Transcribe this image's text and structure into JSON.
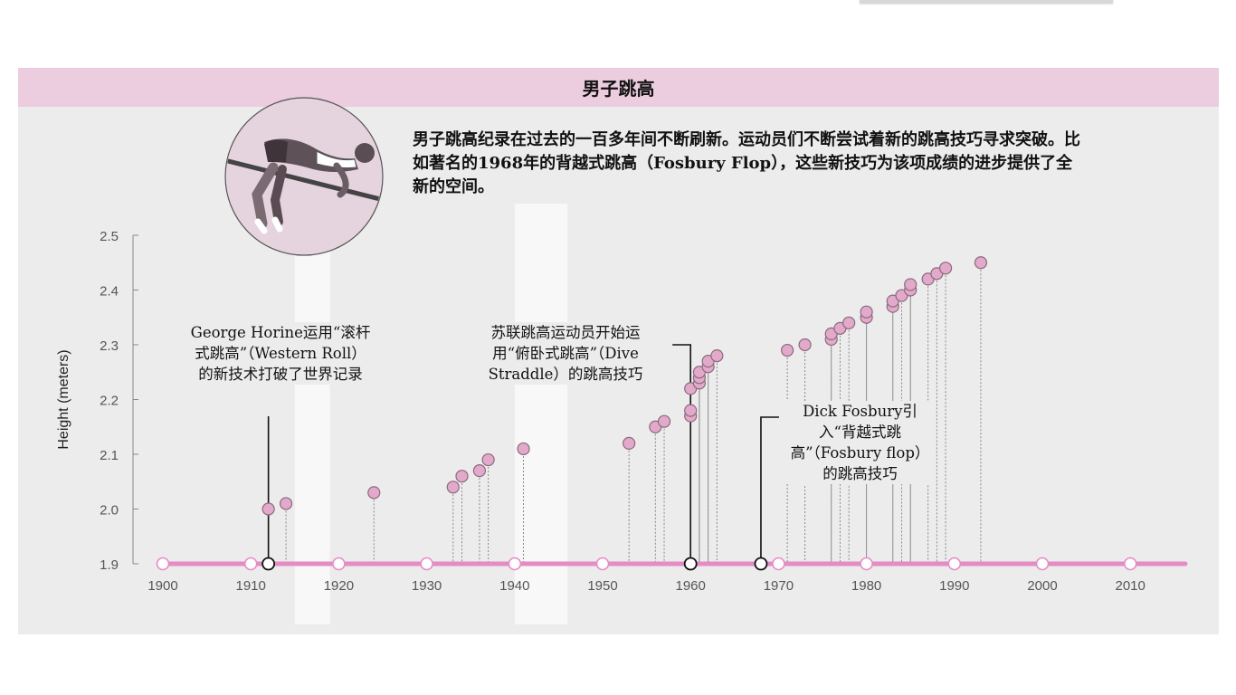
{
  "title": "男子跳高",
  "intro": "男子跳高纪录在过去的一百多年间不断刷新。运动员们不断尝试着新的跳高技巧寻求突破。比如著名的1968年的背越式跳高（Fosbury Flop），这些新技巧为该项成绩的进步提供了全新的空间。",
  "annotations": {
    "horine": "George Horine运用“滚杆式跳高”（Western Roll）的新技术打破了世界记录",
    "soviet": "苏联跳高运动员开始运用“俯卧式跳高”（Dive Straddle）的跳高技巧",
    "fosbury": "Dick Fosbury引入“背越式跳高”（Fosbury flop）的跳高技巧"
  },
  "colors": {
    "title_band": "#ecccdf",
    "panel": "#ececec",
    "timeline": "#e58cc4",
    "point_fill": "#e3a9ca",
    "point_stroke": "#8a6a7c"
  },
  "icons": [
    "high-jumper-illustration"
  ],
  "chart_data": {
    "type": "scatter",
    "title": "男子跳高",
    "xlabel": "",
    "ylabel": "Height (meters)",
    "xlim": [
      1900,
      2016
    ],
    "ylim": [
      1.9,
      2.5
    ],
    "x_ticks": [
      1900,
      1910,
      1920,
      1930,
      1940,
      1950,
      1960,
      1970,
      1980,
      1990,
      2000,
      2010
    ],
    "y_ticks": [
      1.9,
      2.0,
      2.1,
      2.2,
      2.3,
      2.4,
      2.5
    ],
    "y_tick_labels": [
      "1.9",
      "2.0",
      "2.1",
      "2.2",
      "2.3",
      "2.4",
      "2.5"
    ],
    "grid": false,
    "x": [
      1912,
      1914,
      1924,
      1933,
      1934,
      1936,
      1937,
      1941,
      1953,
      1956,
      1957,
      1960,
      1960,
      1960,
      1961,
      1961,
      1961,
      1962,
      1962,
      1963,
      1971,
      1973,
      1976,
      1976,
      1977,
      1978,
      1980,
      1980,
      1983,
      1983,
      1984,
      1985,
      1985,
      1987,
      1988,
      1989,
      1993
    ],
    "y": [
      2.0,
      2.01,
      2.03,
      2.04,
      2.06,
      2.07,
      2.09,
      2.11,
      2.12,
      2.15,
      2.16,
      2.17,
      2.18,
      2.22,
      2.23,
      2.24,
      2.25,
      2.26,
      2.27,
      2.28,
      2.29,
      2.3,
      2.31,
      2.32,
      2.33,
      2.34,
      2.35,
      2.36,
      2.37,
      2.38,
      2.39,
      2.4,
      2.41,
      2.42,
      2.43,
      2.44,
      2.45
    ],
    "highlight_years": [
      1912,
      1960,
      1968
    ],
    "technique_bands": [
      [
        1915,
        1919
      ],
      [
        1940,
        1946
      ]
    ]
  }
}
